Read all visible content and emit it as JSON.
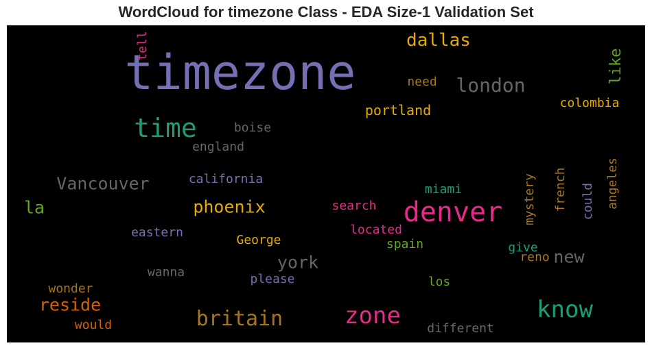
{
  "chart_data": {
    "type": "wordcloud",
    "title": "WordCloud for timezone Class - EDA Size-1 Validation Set",
    "background": "#000000",
    "words": [
      {
        "text": "timezone",
        "color": "#7570b3",
        "orientation": "horizontal"
      },
      {
        "text": "denver",
        "color": "#e7298a",
        "orientation": "horizontal"
      },
      {
        "text": "time",
        "color": "#1b9e77",
        "orientation": "horizontal"
      },
      {
        "text": "know",
        "color": "#1b9e77",
        "orientation": "horizontal"
      },
      {
        "text": "zone",
        "color": "#e7298a",
        "orientation": "horizontal"
      },
      {
        "text": "britain",
        "color": "#a6761d",
        "orientation": "horizontal"
      },
      {
        "text": "london",
        "color": "#666666",
        "orientation": "horizontal"
      },
      {
        "text": "dallas",
        "color": "#e6ab02",
        "orientation": "horizontal"
      },
      {
        "text": "Vancouver",
        "color": "#666666",
        "orientation": "horizontal"
      },
      {
        "text": "phoenix",
        "color": "#e6ab02",
        "orientation": "horizontal"
      },
      {
        "text": "reside",
        "color": "#d95f02",
        "orientation": "horizontal"
      },
      {
        "text": "york",
        "color": "#666666",
        "orientation": "horizontal"
      },
      {
        "text": "new",
        "color": "#666666",
        "orientation": "horizontal"
      },
      {
        "text": "la",
        "color": "#66a61e",
        "orientation": "horizontal"
      },
      {
        "text": "like",
        "color": "#66a61e",
        "orientation": "vertical"
      },
      {
        "text": "portland",
        "color": "#e6ab02",
        "orientation": "horizontal"
      },
      {
        "text": "colombia",
        "color": "#e6ab02",
        "orientation": "horizontal"
      },
      {
        "text": "need",
        "color": "#a6761d",
        "orientation": "horizontal"
      },
      {
        "text": "boise",
        "color": "#666666",
        "orientation": "horizontal"
      },
      {
        "text": "england",
        "color": "#666666",
        "orientation": "horizontal"
      },
      {
        "text": "california",
        "color": "#7570b3",
        "orientation": "horizontal"
      },
      {
        "text": "miami",
        "color": "#1b9e77",
        "orientation": "horizontal"
      },
      {
        "text": "search",
        "color": "#e7298a",
        "orientation": "horizontal"
      },
      {
        "text": "located",
        "color": "#e7298a",
        "orientation": "horizontal"
      },
      {
        "text": "eastern",
        "color": "#7570b3",
        "orientation": "horizontal"
      },
      {
        "text": "George",
        "color": "#e6ab02",
        "orientation": "horizontal"
      },
      {
        "text": "spain",
        "color": "#66a61e",
        "orientation": "horizontal"
      },
      {
        "text": "give",
        "color": "#1b9e77",
        "orientation": "horizontal"
      },
      {
        "text": "reno",
        "color": "#a6761d",
        "orientation": "horizontal"
      },
      {
        "text": "wanna",
        "color": "#666666",
        "orientation": "horizontal"
      },
      {
        "text": "please",
        "color": "#7570b3",
        "orientation": "horizontal"
      },
      {
        "text": "wonder",
        "color": "#a6761d",
        "orientation": "horizontal"
      },
      {
        "text": "los",
        "color": "#66a61e",
        "orientation": "horizontal"
      },
      {
        "text": "would",
        "color": "#d95f02",
        "orientation": "horizontal"
      },
      {
        "text": "different",
        "color": "#666666",
        "orientation": "horizontal"
      },
      {
        "text": "tell",
        "color": "#e7298a",
        "orientation": "vertical"
      },
      {
        "text": "mystery",
        "color": "#a6761d",
        "orientation": "vertical"
      },
      {
        "text": "french",
        "color": "#a6761d",
        "orientation": "vertical"
      },
      {
        "text": "could",
        "color": "#7570b3",
        "orientation": "vertical"
      },
      {
        "text": "angeles",
        "color": "#a6761d",
        "orientation": "vertical"
      }
    ]
  }
}
